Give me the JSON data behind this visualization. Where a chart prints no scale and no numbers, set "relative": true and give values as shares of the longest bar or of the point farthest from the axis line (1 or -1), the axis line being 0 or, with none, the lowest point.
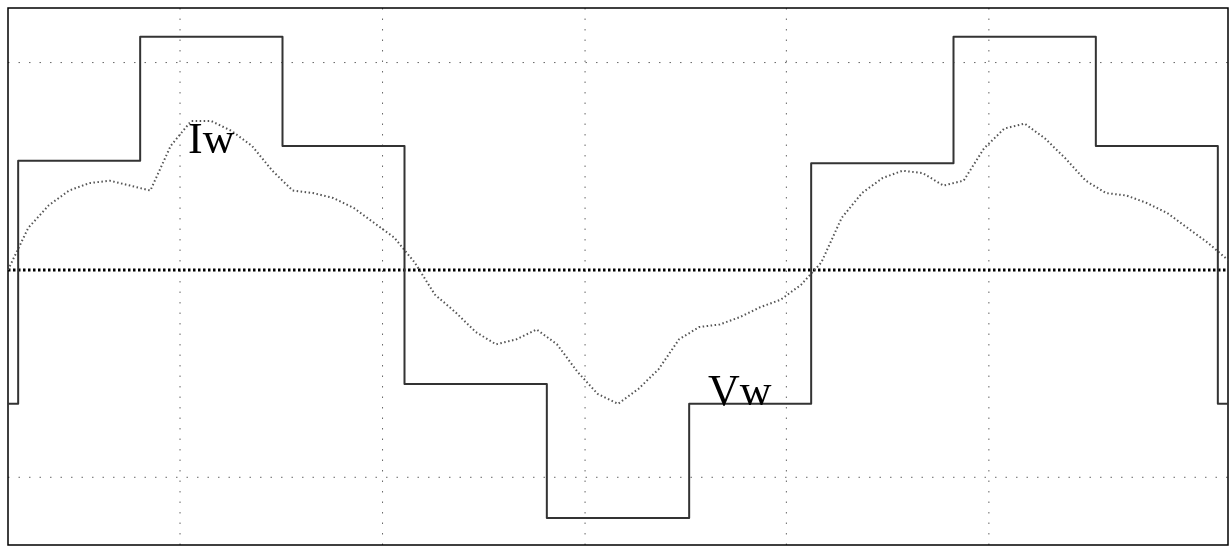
{
  "chart_data": {
    "type": "line",
    "relative": true,
    "ref_lines": [
      {
        "axis": "y",
        "value": 0,
        "color": "#000000",
        "line_style": "dotted"
      }
    ],
    "grid": true,
    "legend": false,
    "tick_labels": false,
    "marker": "none",
    "categories": [
      null,
      null,
      null,
      null,
      null,
      null,
      null,
      null,
      null,
      null,
      null,
      null,
      null,
      null,
      null,
      null,
      null,
      null,
      null,
      null,
      null,
      null,
      null,
      null,
      null,
      null,
      null,
      null,
      null,
      null,
      null,
      null,
      null,
      null,
      null,
      null,
      null,
      null,
      null,
      null,
      null,
      null,
      null,
      null,
      null,
      null,
      null,
      null,
      null,
      null,
      null,
      null,
      null,
      null,
      null,
      null,
      null,
      null,
      null,
      null,
      null
    ],
    "series": [
      {
        "name": "Vw",
        "type": "step",
        "color": "#333333",
        "line_style": "solid",
        "values": [
          -0.54,
          0.44,
          0.44,
          0.44,
          0.44,
          0.44,
          0.44,
          0.94,
          0.94,
          0.94,
          0.94,
          0.94,
          0.94,
          0.94,
          0.5,
          0.5,
          0.5,
          0.5,
          0.5,
          0.5,
          -0.46,
          -0.46,
          -0.46,
          -0.46,
          -0.46,
          -0.46,
          -0.46,
          -1,
          -1,
          -1,
          -1,
          -1,
          -1,
          -1,
          -0.54,
          -0.54,
          -0.54,
          -0.54,
          -0.54,
          -0.54,
          0.43,
          0.43,
          0.43,
          0.43,
          0.43,
          0.43,
          0.43,
          0.94,
          0.94,
          0.94,
          0.94,
          0.94,
          0.94,
          0.94,
          0.5,
          0.5,
          0.5,
          0.5,
          0.5,
          0.5,
          -0.54
        ]
      },
      {
        "name": "Iw",
        "type": "line",
        "color": "#555555",
        "line_style": "dotted",
        "values": [
          0,
          0.17,
          0.26,
          0.32,
          0.35,
          0.36,
          0.34,
          0.32,
          0.5,
          0.6,
          0.6,
          0.56,
          0.5,
          0.4,
          0.32,
          0.31,
          0.29,
          0.25,
          0.19,
          0.13,
          0.03,
          -0.1,
          -0.17,
          -0.25,
          -0.3,
          -0.28,
          -0.24,
          -0.3,
          -0.41,
          -0.5,
          -0.54,
          -0.48,
          -0.4,
          -0.28,
          -0.23,
          -0.22,
          -0.19,
          -0.15,
          -0.12,
          -0.06,
          0.03,
          0.21,
          0.31,
          0.37,
          0.4,
          0.39,
          0.34,
          0.36,
          0.49,
          0.57,
          0.59,
          0.53,
          0.45,
          0.36,
          0.31,
          0.3,
          0.27,
          0.23,
          0.17,
          0.11,
          0.04
        ]
      }
    ]
  }
}
